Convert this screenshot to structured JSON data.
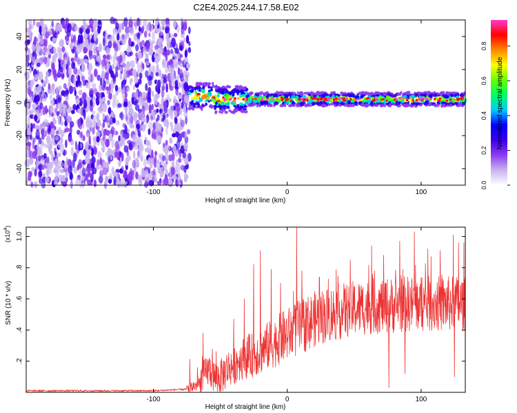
{
  "title": "C2E4.2025.244.17.58.E02",
  "chart_data": [
    {
      "type": "heatmap",
      "title": "C2E4.2025.244.17.58.E02",
      "xlabel": "Height of straight line (km)",
      "ylabel": "Frequency (Hz)",
      "xlim": [
        -195,
        133
      ],
      "ylim": [
        -50,
        50
      ],
      "xticks": [
        -100,
        0,
        100
      ],
      "yticks": [
        -40,
        -20,
        0,
        20,
        40
      ],
      "colorbar": {
        "label": "Normalized spectral amplitude",
        "range": [
          0.0,
          0.95
        ],
        "ticks": [
          0.0,
          0.2,
          0.4,
          0.6,
          0.8
        ],
        "colors": [
          "#ffffff",
          "#c8b4f0",
          "#8c3cf0",
          "#3a00e6",
          "#0000ff",
          "#00ccff",
          "#00ff66",
          "#66ff00",
          "#ffff00",
          "#ff8800",
          "#ff0000",
          "#ff3cc8"
        ]
      },
      "regions": [
        {
          "name": "noise",
          "x": [
            -195,
            -73
          ],
          "freq": [
            -50,
            50
          ],
          "amplitude": [
            0.05,
            0.3
          ]
        },
        {
          "name": "signal band",
          "x": [
            -73,
            133
          ],
          "freq_center": 2,
          "freq_halfwidth": 4,
          "amplitude": [
            0.3,
            0.95
          ]
        }
      ]
    },
    {
      "type": "line",
      "xlabel": "Height of straight line (km)",
      "ylabel": "SNR (10 * v/v)",
      "scale_label": "(x10",
      "scale_exp": "4",
      "xlim": [
        -195,
        133
      ],
      "ylim": [
        0,
        1.06
      ],
      "xticks": [
        -100,
        0,
        100
      ],
      "yticks": [
        0.2,
        0.4,
        0.6,
        0.8,
        1.0
      ],
      "series": [
        {
          "name": "SNR",
          "color": "#ee3333",
          "x": [
            -195,
            -150,
            -100,
            -75,
            -68,
            -62,
            -58,
            -55,
            -50,
            -45,
            -40,
            -35,
            -30,
            -25,
            -20,
            -15,
            -10,
            -5,
            0,
            5,
            10,
            20,
            30,
            40,
            50,
            60,
            70,
            80,
            90,
            100,
            110,
            120,
            133
          ],
          "values": [
            0.01,
            0.01,
            0.01,
            0.02,
            0.04,
            0.1,
            0.14,
            0.09,
            0.08,
            0.14,
            0.16,
            0.2,
            0.21,
            0.23,
            0.25,
            0.28,
            0.3,
            0.33,
            0.35,
            0.38,
            0.4,
            0.45,
            0.48,
            0.5,
            0.52,
            0.53,
            0.54,
            0.54,
            0.55,
            0.55,
            0.55,
            0.55,
            0.55
          ],
          "peaks": [
            [
              -63,
              0.38
            ],
            [
              -40,
              0.47
            ],
            [
              -32,
              0.6
            ],
            [
              -25,
              0.82
            ],
            [
              -20,
              0.91
            ],
            [
              -12,
              0.79
            ],
            [
              -5,
              0.7
            ],
            [
              7,
              1.06
            ],
            [
              11,
              0.78
            ],
            [
              24,
              0.74
            ],
            [
              47,
              0.85
            ],
            [
              63,
              0.94
            ],
            [
              72,
              0.88
            ],
            [
              76,
              1.04
            ],
            [
              84,
              0.97
            ],
            [
              95,
              1.03
            ],
            [
              105,
              0.92
            ],
            [
              124,
              1.01
            ],
            [
              128,
              0.96
            ],
            [
              132,
              0.96
            ]
          ],
          "dips": [
            [
              76,
              0.03
            ],
            [
              88,
              0.12
            ],
            [
              125,
              0.1
            ]
          ]
        }
      ]
    }
  ]
}
